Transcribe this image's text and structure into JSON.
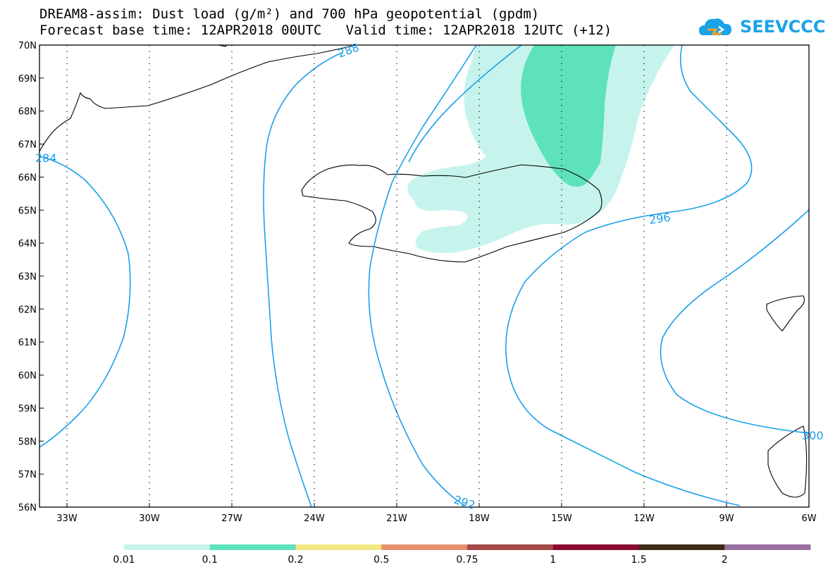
{
  "header": {
    "title_line1": "DREAM8-assim: Dust load (g/m²) and 700 hPa geopotential (gpdm)",
    "title_line2": "Forecast base time: 12APR2018 00UTC   Valid time: 12APR2018 12UTC (+12)",
    "logo_text": "SEEVCCC"
  },
  "map": {
    "lon_range": [
      -34,
      -6
    ],
    "lat_range": [
      56,
      70
    ],
    "lat_ticks": [
      "56N",
      "57N",
      "58N",
      "59N",
      "60N",
      "61N",
      "62N",
      "63N",
      "64N",
      "65N",
      "66N",
      "67N",
      "68N",
      "69N",
      "70N"
    ],
    "lon_ticks": [
      "33W",
      "30W",
      "27W",
      "24W",
      "21W",
      "18W",
      "15W",
      "12W",
      "9W",
      "6W"
    ],
    "contour_labels": [
      "288",
      "284",
      "292",
      "296",
      "300"
    ],
    "contour_color": "#1aa0ea"
  },
  "colorbar": {
    "colors": [
      "#c6f4ec",
      "#5ee2bc",
      "#f4e884",
      "#e89070",
      "#a44a48",
      "#8a0a30",
      "#3e2a16",
      "#9a70a0"
    ],
    "labels": [
      "0.01",
      "0.1",
      "0.2",
      "0.5",
      "0.75",
      "1",
      "1.5",
      "2"
    ]
  }
}
